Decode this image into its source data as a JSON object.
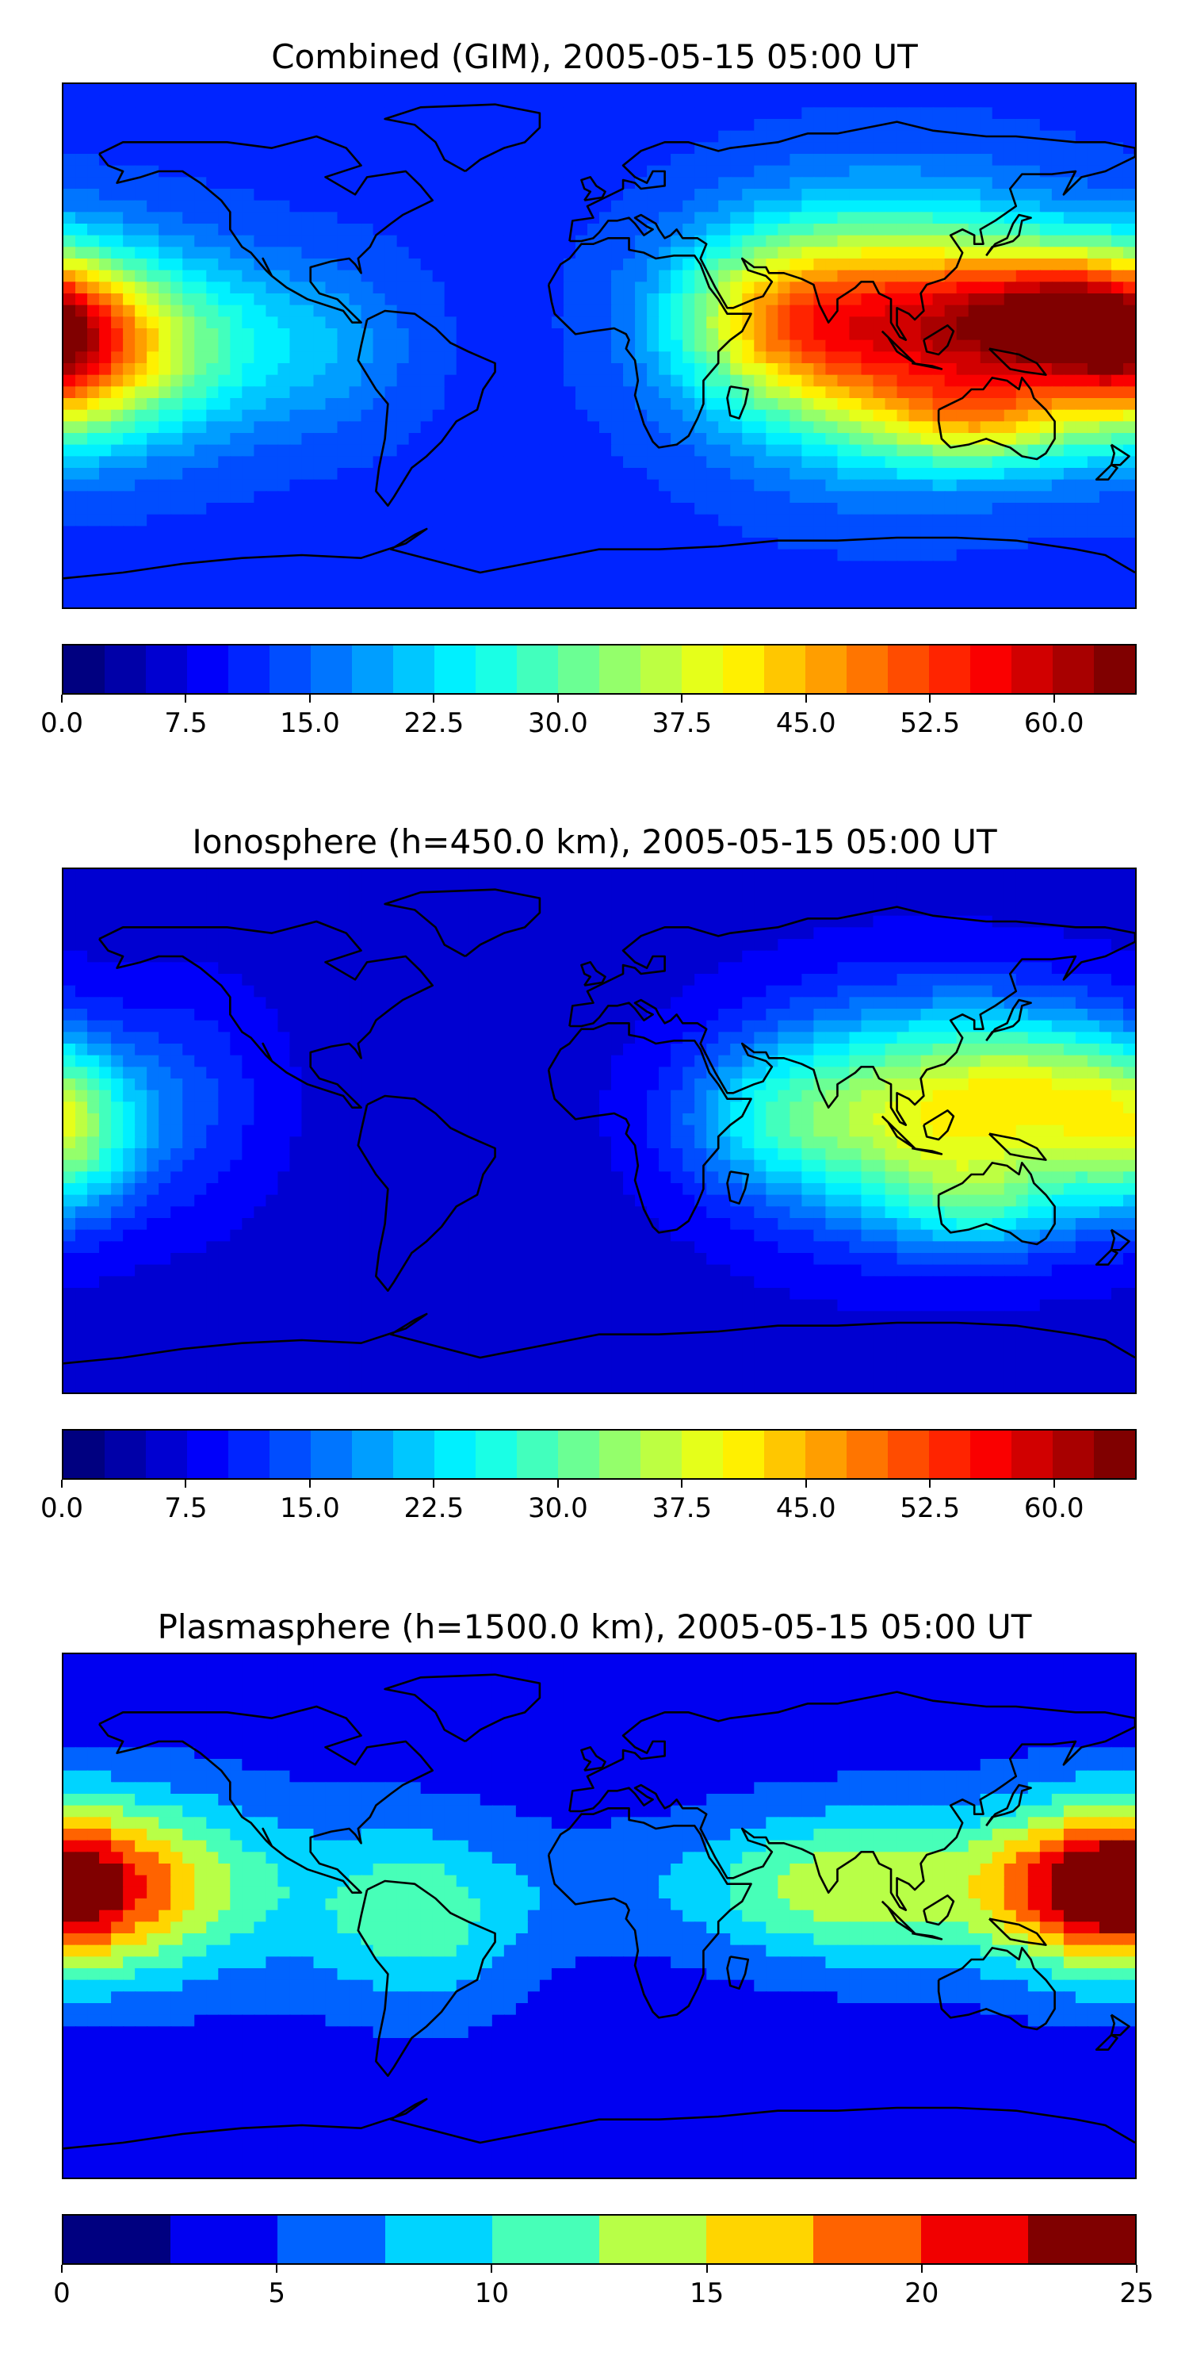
{
  "panels": [
    {
      "title": "Combined (GIM), 2005-05-15 05:00 UT",
      "colorbar": {
        "min": 0,
        "max": 65,
        "levels": 26,
        "ticks": [
          "0.0",
          "7.5",
          "15.0",
          "22.5",
          "30.0",
          "37.5",
          "45.0",
          "52.5",
          "60.0"
        ],
        "tick_values": [
          0,
          7.5,
          15,
          22.5,
          30,
          37.5,
          45,
          52.5,
          60
        ]
      },
      "field": {
        "background_level": 0.18,
        "blobs": [
          {
            "lon": 100,
            "lat": 5,
            "amp": 0.62,
            "sx": 38,
            "sy": 28
          },
          {
            "lon": 150,
            "lat": 10,
            "amp": 0.45,
            "sx": 25,
            "sy": 16
          },
          {
            "lon": 130,
            "lat": -25,
            "amp": 0.25,
            "sx": 22,
            "sy": 12
          },
          {
            "lon": 55,
            "lat": 10,
            "amp": 0.25,
            "sx": 25,
            "sy": 20
          },
          {
            "lon": -180,
            "lat": 0,
            "amp": 0.55,
            "sx": 22,
            "sy": 22
          },
          {
            "lon": -140,
            "lat": 0,
            "amp": 0.25,
            "sx": 25,
            "sy": 22
          },
          {
            "lon": -90,
            "lat": 0,
            "amp": 0.1,
            "sx": 20,
            "sy": 20
          }
        ]
      }
    },
    {
      "title": "Ionosphere  (h=450.0 km), 2005-05-15 05:00 UT",
      "colorbar": {
        "min": 0,
        "max": 65,
        "levels": 26,
        "ticks": [
          "0.0",
          "7.5",
          "15.0",
          "22.5",
          "30.0",
          "37.5",
          "45.0",
          "52.5",
          "60.0"
        ],
        "tick_values": [
          0,
          7.5,
          15,
          22.5,
          30,
          37.5,
          45,
          52.5,
          60
        ]
      },
      "field": {
        "background_level": 0.1,
        "blobs": [
          {
            "lon": 110,
            "lat": 5,
            "amp": 0.48,
            "sx": 38,
            "sy": 26
          },
          {
            "lon": 150,
            "lat": 15,
            "amp": 0.2,
            "sx": 22,
            "sy": 18
          },
          {
            "lon": 130,
            "lat": -25,
            "amp": 0.15,
            "sx": 20,
            "sy": 12
          },
          {
            "lon": 55,
            "lat": 5,
            "amp": 0.15,
            "sx": 22,
            "sy": 18
          },
          {
            "lon": -180,
            "lat": 0,
            "amp": 0.35,
            "sx": 18,
            "sy": 20
          },
          {
            "lon": -140,
            "lat": 10,
            "amp": 0.1,
            "sx": 20,
            "sy": 25
          }
        ]
      }
    },
    {
      "title": "Plasmasphere (h=1500.0 km), 2005-05-15 05:00 UT",
      "colorbar": {
        "min": 0,
        "max": 25,
        "levels": 10,
        "ticks": [
          "0",
          "5",
          "10",
          "15",
          "20",
          "25"
        ],
        "tick_values": [
          0,
          5,
          10,
          15,
          20,
          25
        ]
      },
      "field": {
        "background_level": 0.15,
        "blobs": [
          {
            "lon": -170,
            "lat": 10,
            "amp": 0.55,
            "sx": 45,
            "sy": 22
          },
          {
            "lon": -60,
            "lat": 0,
            "amp": 0.3,
            "sx": 25,
            "sy": 22
          },
          {
            "lon": 80,
            "lat": 10,
            "amp": 0.4,
            "sx": 35,
            "sy": 18
          },
          {
            "lon": 170,
            "lat": 10,
            "amp": 0.45,
            "sx": 25,
            "sy": 18
          },
          {
            "lon": 0,
            "lat": 10,
            "amp": 0.08,
            "sx": 25,
            "sy": 15
          }
        ]
      }
    }
  ]
}
